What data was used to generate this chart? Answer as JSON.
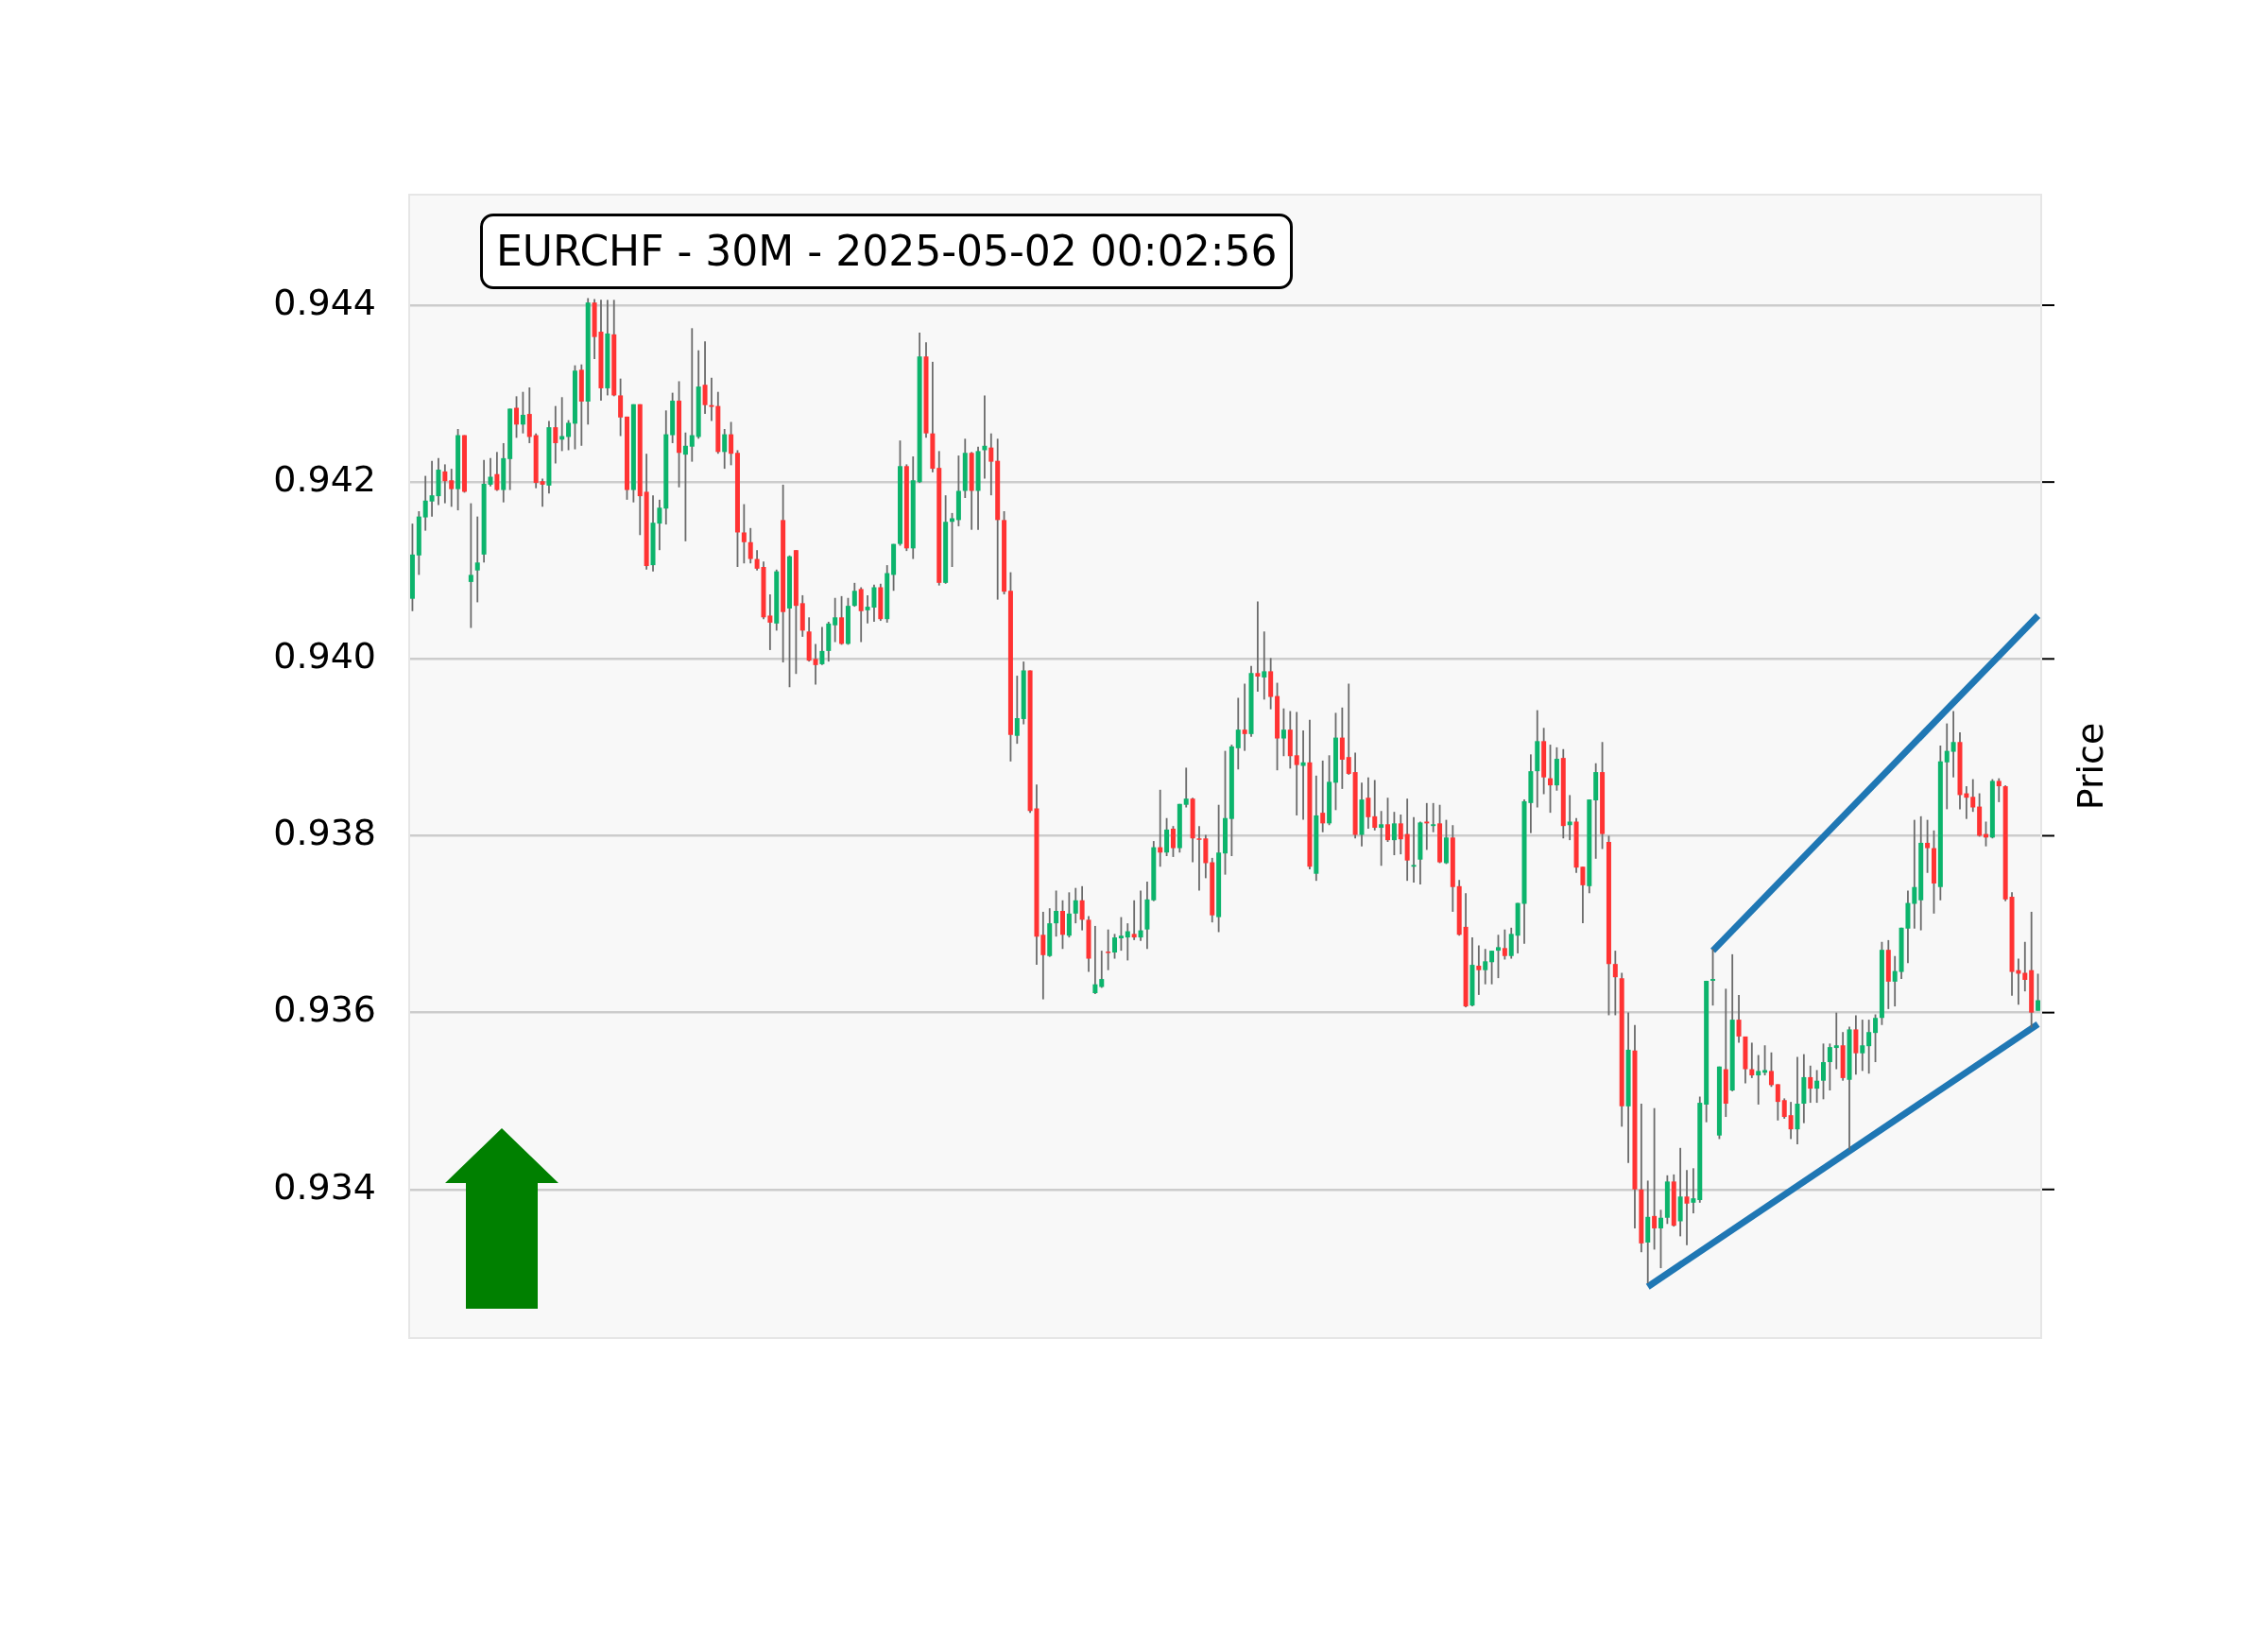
{
  "chart_data": {
    "type": "candlestick",
    "title": "EURCHF - 30M - 2025-05-02 00:02:56",
    "ylabel": "Price",
    "categories": [
      null,
      null,
      null,
      null,
      null,
      null,
      null,
      null,
      null,
      null,
      null,
      null,
      null,
      null,
      null,
      null,
      null,
      null,
      null,
      null,
      null,
      null,
      null,
      null,
      null,
      null,
      null,
      null,
      null,
      null,
      null,
      null,
      null,
      null,
      null,
      null,
      null,
      null,
      null,
      null,
      null,
      null,
      null,
      null,
      null,
      null,
      null,
      null,
      null,
      null,
      null,
      null,
      null,
      null,
      null,
      null,
      null,
      null,
      null,
      null,
      null,
      null,
      null,
      null,
      null,
      null,
      null,
      null,
      null,
      null,
      null,
      null,
      null,
      null,
      null,
      null,
      null,
      null,
      null,
      null,
      null,
      null,
      null,
      null,
      null,
      null,
      null,
      null,
      null,
      null,
      null,
      null,
      null,
      null,
      null,
      null,
      null,
      null,
      null,
      null,
      null,
      null,
      null,
      null,
      null,
      null,
      null,
      null,
      null,
      null,
      null,
      null,
      null,
      null,
      null,
      null,
      null,
      null,
      null,
      null,
      null,
      null,
      null,
      null,
      null,
      null,
      null,
      null,
      null,
      null,
      null,
      null,
      null,
      null,
      null,
      null,
      null,
      null,
      null,
      null,
      null,
      null,
      null,
      null,
      null,
      null,
      null,
      null,
      null,
      null,
      null,
      null,
      null,
      null,
      null,
      null,
      null,
      null,
      null,
      null,
      null,
      null,
      null,
      null,
      null,
      null,
      null,
      null,
      null,
      null,
      null,
      null,
      null,
      null,
      null,
      null,
      null,
      null,
      null,
      null,
      null,
      null,
      null,
      null,
      null,
      null,
      null,
      null,
      null,
      null,
      null,
      null,
      null,
      null,
      null,
      null,
      null,
      null,
      null,
      null,
      null,
      null,
      null,
      null,
      null,
      null,
      null,
      null,
      null,
      null,
      null,
      null,
      null,
      null,
      null,
      null,
      null,
      null,
      null,
      null,
      null,
      null,
      null,
      null,
      null,
      null,
      null,
      null,
      null,
      null,
      null,
      null,
      null,
      null,
      null,
      null,
      null,
      null,
      null,
      null,
      null,
      null,
      null,
      null,
      null,
      null,
      null,
      null,
      null,
      null,
      null
    ],
    "ohlc": [
      [
        0.94068,
        0.94153,
        0.94054,
        0.94118
      ],
      [
        0.94117,
        0.94167,
        0.94095,
        0.94161
      ],
      [
        0.9416,
        0.94207,
        0.94145,
        0.94179
      ],
      [
        0.94178,
        0.94224,
        0.94161,
        0.94185
      ],
      [
        0.94184,
        0.94227,
        0.94174,
        0.94214
      ],
      [
        0.94212,
        0.9422,
        0.94176,
        0.94201
      ],
      [
        0.94202,
        0.94215,
        0.94172,
        0.94192
      ],
      [
        0.94192,
        0.9426,
        0.94168,
        0.94253
      ],
      [
        0.94253,
        0.94253,
        0.94188,
        0.94189
      ],
      [
        0.94087,
        0.94176,
        0.94035,
        0.94095
      ],
      [
        0.941,
        0.94161,
        0.94064,
        0.94109
      ],
      [
        0.94118,
        0.94225,
        0.94109,
        0.94198
      ],
      [
        0.94197,
        0.94227,
        0.94195,
        0.94206
      ],
      [
        0.94209,
        0.94234,
        0.9419,
        0.94191
      ],
      [
        0.94191,
        0.94244,
        0.94177,
        0.94227
      ],
      [
        0.94226,
        0.94283,
        0.94191,
        0.94283
      ],
      [
        0.94284,
        0.94297,
        0.9425,
        0.94265
      ],
      [
        0.94265,
        0.94302,
        0.94255,
        0.94276
      ],
      [
        0.94277,
        0.94307,
        0.94244,
        0.94251
      ],
      [
        0.94253,
        0.94255,
        0.94193,
        0.94199
      ],
      [
        0.94201,
        0.94204,
        0.94172,
        0.94197
      ],
      [
        0.94196,
        0.94269,
        0.94187,
        0.94262
      ],
      [
        0.94262,
        0.94286,
        0.94221,
        0.94244
      ],
      [
        0.94248,
        0.94296,
        0.94235,
        0.94252
      ],
      [
        0.94251,
        0.9427,
        0.94236,
        0.94267
      ],
      [
        0.94266,
        0.94332,
        0.94237,
        0.94326
      ],
      [
        0.94327,
        0.94333,
        0.94241,
        0.94291
      ],
      [
        0.94291,
        0.94408,
        0.94265,
        0.94403
      ],
      [
        0.94403,
        0.94407,
        0.94339,
        0.94364
      ],
      [
        0.9437,
        0.94406,
        0.94292,
        0.94306
      ],
      [
        0.94306,
        0.94406,
        0.94298,
        0.94368
      ],
      [
        0.94367,
        0.94406,
        0.94297,
        0.94298
      ],
      [
        0.94298,
        0.94317,
        0.94252,
        0.94273
      ],
      [
        0.94274,
        0.94274,
        0.9418,
        0.94191
      ],
      [
        0.94191,
        0.94288,
        0.94177,
        0.94288
      ],
      [
        0.94288,
        0.94288,
        0.9414,
        0.94184
      ],
      [
        0.94189,
        0.94232,
        0.94101,
        0.94105
      ],
      [
        0.94106,
        0.94185,
        0.94099,
        0.94154
      ],
      [
        0.94153,
        0.9418,
        0.94123,
        0.94171
      ],
      [
        0.9417,
        0.94281,
        0.94152,
        0.94254
      ],
      [
        0.94253,
        0.94301,
        0.94244,
        0.94292
      ],
      [
        0.94292,
        0.94314,
        0.94194,
        0.94233
      ],
      [
        0.94231,
        0.94256,
        0.94133,
        0.94241
      ],
      [
        0.9424,
        0.94374,
        0.94223,
        0.94253
      ],
      [
        0.94251,
        0.94349,
        0.94249,
        0.94308
      ],
      [
        0.9431,
        0.94359,
        0.94277,
        0.94287
      ],
      [
        0.94287,
        0.94318,
        0.94269,
        0.94285
      ],
      [
        0.94286,
        0.94302,
        0.94232,
        0.94234
      ],
      [
        0.94234,
        0.9426,
        0.94215,
        0.94254
      ],
      [
        0.94254,
        0.94268,
        0.94219,
        0.94232
      ],
      [
        0.94233,
        0.94236,
        0.94104,
        0.94143
      ],
      [
        0.94143,
        0.94175,
        0.94108,
        0.94132
      ],
      [
        0.94132,
        0.94148,
        0.94108,
        0.94113
      ],
      [
        0.94113,
        0.94123,
        0.941,
        0.94102
      ],
      [
        0.94104,
        0.9411,
        0.94045,
        0.94047
      ],
      [
        0.94049,
        0.94073,
        0.9401,
        0.94041
      ],
      [
        0.9404,
        0.94101,
        0.94032,
        0.94099
      ],
      [
        0.94157,
        0.94197,
        0.93996,
        0.94053
      ],
      [
        0.94057,
        0.94117,
        0.93968,
        0.94116
      ],
      [
        0.94123,
        0.94123,
        0.93983,
        0.9406
      ],
      [
        0.94063,
        0.94072,
        0.94025,
        0.94032
      ],
      [
        0.94031,
        0.94047,
        0.93997,
        0.93998
      ],
      [
        0.94,
        0.94017,
        0.93971,
        0.93993
      ],
      [
        0.93994,
        0.94036,
        0.93993,
        0.94009
      ],
      [
        0.94009,
        0.94042,
        0.93997,
        0.9404
      ],
      [
        0.94038,
        0.94069,
        0.94019,
        0.94047
      ],
      [
        0.94047,
        0.94071,
        0.94016,
        0.94017
      ],
      [
        0.94017,
        0.94069,
        0.94016,
        0.9406
      ],
      [
        0.9406,
        0.94086,
        0.94059,
        0.94077
      ],
      [
        0.94079,
        0.94081,
        0.94019,
        0.94054
      ],
      [
        0.94055,
        0.94072,
        0.9404,
        0.94059
      ],
      [
        0.94058,
        0.94084,
        0.94042,
        0.94081
      ],
      [
        0.94081,
        0.94085,
        0.94043,
        0.94045
      ],
      [
        0.94045,
        0.94106,
        0.94041,
        0.94097
      ],
      [
        0.94095,
        0.9413,
        0.94077,
        0.9413
      ],
      [
        0.9413,
        0.94247,
        0.94128,
        0.94218
      ],
      [
        0.94218,
        0.9422,
        0.94122,
        0.94125
      ],
      [
        0.94125,
        0.94229,
        0.94113,
        0.94202
      ],
      [
        0.942,
        0.94369,
        0.94199,
        0.94342
      ],
      [
        0.94342,
        0.94358,
        0.9425,
        0.94255
      ],
      [
        0.94255,
        0.94336,
        0.94211,
        0.94215
      ],
      [
        0.94216,
        0.94235,
        0.94083,
        0.94086
      ],
      [
        0.94086,
        0.94185,
        0.94085,
        0.94155
      ],
      [
        0.94155,
        0.94165,
        0.94104,
        0.94159
      ],
      [
        0.94157,
        0.9423,
        0.9415,
        0.9419
      ],
      [
        0.9419,
        0.94249,
        0.94182,
        0.94233
      ],
      [
        0.94233,
        0.94234,
        0.94146,
        0.9419
      ],
      [
        0.9419,
        0.9424,
        0.94146,
        0.94235
      ],
      [
        0.94236,
        0.94298,
        0.94204,
        0.94241
      ],
      [
        0.94239,
        0.94255,
        0.94185,
        0.94223
      ],
      [
        0.94224,
        0.94249,
        0.94067,
        0.94157
      ],
      [
        0.94157,
        0.94167,
        0.94073,
        0.94076
      ],
      [
        0.94077,
        0.94098,
        0.93884,
        0.93914
      ],
      [
        0.93913,
        0.93981,
        0.93904,
        0.93933
      ],
      [
        0.93932,
        0.93997,
        0.93926,
        0.93987
      ],
      [
        0.93987,
        0.93987,
        0.93826,
        0.93828
      ],
      [
        0.93831,
        0.93858,
        0.93654,
        0.93686
      ],
      [
        0.93688,
        0.93714,
        0.93615,
        0.93665
      ],
      [
        0.93664,
        0.93718,
        0.93663,
        0.93701
      ],
      [
        0.93701,
        0.93738,
        0.93686,
        0.93715
      ],
      [
        0.93715,
        0.93727,
        0.93672,
        0.93688
      ],
      [
        0.93687,
        0.93736,
        0.93685,
        0.93712
      ],
      [
        0.93712,
        0.93741,
        0.93701,
        0.93727
      ],
      [
        0.93727,
        0.93743,
        0.93693,
        0.93705
      ],
      [
        0.93705,
        0.93709,
        0.93646,
        0.93661
      ],
      [
        0.93622,
        0.93698,
        0.93621,
        0.93632
      ],
      [
        0.93629,
        0.9367,
        0.93628,
        0.93638
      ],
      [
        0.93669,
        0.93694,
        0.93648,
        0.93668
      ],
      [
        0.93668,
        0.93689,
        0.93661,
        0.93685
      ],
      [
        0.93684,
        0.93708,
        0.9367,
        0.93687
      ],
      [
        0.93685,
        0.93701,
        0.93659,
        0.93692
      ],
      [
        0.93689,
        0.93727,
        0.93682,
        0.93685
      ],
      [
        0.93685,
        0.93738,
        0.93681,
        0.93693
      ],
      [
        0.93694,
        0.93748,
        0.93672,
        0.93728
      ],
      [
        0.93727,
        0.93794,
        0.93726,
        0.93787
      ],
      [
        0.93787,
        0.93852,
        0.93765,
        0.93781
      ],
      [
        0.93781,
        0.9382,
        0.93777,
        0.93807
      ],
      [
        0.93808,
        0.93811,
        0.93776,
        0.93786
      ],
      [
        0.93786,
        0.93836,
        0.93781,
        0.93836
      ],
      [
        0.93835,
        0.93877,
        0.93832,
        0.93842
      ],
      [
        0.93842,
        0.93843,
        0.9377,
        0.93797
      ],
      [
        0.93797,
        0.93811,
        0.93738,
        0.93796
      ],
      [
        0.93797,
        0.93801,
        0.93752,
        0.93769
      ],
      [
        0.9377,
        0.93775,
        0.93702,
        0.9371
      ],
      [
        0.93708,
        0.93835,
        0.93691,
        0.93781
      ],
      [
        0.9378,
        0.93896,
        0.93756,
        0.9382
      ],
      [
        0.93819,
        0.93903,
        0.93777,
        0.93901
      ],
      [
        0.93899,
        0.93956,
        0.93875,
        0.9392
      ],
      [
        0.9392,
        0.93972,
        0.93896,
        0.93915
      ],
      [
        0.93915,
        0.93992,
        0.93912,
        0.93984
      ],
      [
        0.93984,
        0.94065,
        0.93963,
        0.9398
      ],
      [
        0.93979,
        0.94031,
        0.93954,
        0.93986
      ],
      [
        0.93986,
        0.94001,
        0.93943,
        0.93957
      ],
      [
        0.93958,
        0.93973,
        0.93874,
        0.9391
      ],
      [
        0.9391,
        0.93944,
        0.9389,
        0.9392
      ],
      [
        0.9392,
        0.93941,
        0.93876,
        0.9389
      ],
      [
        0.93891,
        0.9394,
        0.93823,
        0.9388
      ],
      [
        0.93879,
        0.93919,
        0.93818,
        0.93883
      ],
      [
        0.93883,
        0.93931,
        0.93762,
        0.93765
      ],
      [
        0.93757,
        0.93868,
        0.93749,
        0.93823
      ],
      [
        0.93826,
        0.93885,
        0.93804,
        0.93814
      ],
      [
        0.93814,
        0.93891,
        0.93812,
        0.93861
      ],
      [
        0.9386,
        0.93939,
        0.93829,
        0.93911
      ],
      [
        0.93911,
        0.93945,
        0.93853,
        0.93886
      ],
      [
        0.93889,
        0.93972,
        0.93869,
        0.9387
      ],
      [
        0.93872,
        0.93894,
        0.93797,
        0.93801
      ],
      [
        0.93801,
        0.9386,
        0.93788,
        0.93841
      ],
      [
        0.93843,
        0.93866,
        0.93808,
        0.93821
      ],
      [
        0.93822,
        0.93863,
        0.93806,
        0.93809
      ],
      [
        0.93809,
        0.93828,
        0.93766,
        0.93813
      ],
      [
        0.93813,
        0.93843,
        0.93793,
        0.93795
      ],
      [
        0.93795,
        0.93827,
        0.93778,
        0.93814
      ],
      [
        0.93814,
        0.93824,
        0.93779,
        0.93796
      ],
      [
        0.93802,
        0.93842,
        0.93749,
        0.93772
      ],
      [
        0.93765,
        0.93821,
        0.93747,
        0.93767
      ],
      [
        0.93773,
        0.93816,
        0.93745,
        0.93815
      ],
      [
        0.93816,
        0.93837,
        0.93784,
        0.93814
      ],
      [
        0.93811,
        0.93837,
        0.93804,
        0.93813
      ],
      [
        0.93814,
        0.93835,
        0.93769,
        0.9377
      ],
      [
        0.93769,
        0.93818,
        0.93768,
        0.93798
      ],
      [
        0.93798,
        0.93812,
        0.93714,
        0.93742
      ],
      [
        0.93743,
        0.9375,
        0.93687,
        0.93688
      ],
      [
        0.93697,
        0.93735,
        0.93606,
        0.93607
      ],
      [
        0.93608,
        0.93685,
        0.93607,
        0.93654
      ],
      [
        0.93653,
        0.93676,
        0.9362,
        0.93648
      ],
      [
        0.93648,
        0.93672,
        0.93632,
        0.93658
      ],
      [
        0.93657,
        0.9367,
        0.93632,
        0.9367
      ],
      [
        0.9367,
        0.93688,
        0.93639,
        0.93674
      ],
      [
        0.93673,
        0.93694,
        0.9366,
        0.93664
      ],
      [
        0.93664,
        0.93696,
        0.93661,
        0.93689
      ],
      [
        0.93687,
        0.93724,
        0.93667,
        0.93724
      ],
      [
        0.93723,
        0.93841,
        0.93678,
        0.93839
      ],
      [
        0.93837,
        0.93892,
        0.93803,
        0.93873
      ],
      [
        0.93873,
        0.93942,
        0.93832,
        0.93907
      ],
      [
        0.93907,
        0.93922,
        0.93847,
        0.93866
      ],
      [
        0.93865,
        0.93903,
        0.93826,
        0.93857
      ],
      [
        0.93857,
        0.939,
        0.93851,
        0.93887
      ],
      [
        0.93888,
        0.93898,
        0.93797,
        0.93811
      ],
      [
        0.93812,
        0.93846,
        0.93795,
        0.93816
      ],
      [
        0.93816,
        0.9382,
        0.93758,
        0.93764
      ],
      [
        0.93765,
        0.93765,
        0.93701,
        0.93744
      ],
      [
        0.93743,
        0.93841,
        0.93735,
        0.93841
      ],
      [
        0.9384,
        0.93882,
        0.93774,
        0.93872
      ],
      [
        0.93872,
        0.93906,
        0.93785,
        0.93802
      ],
      [
        0.93793,
        0.938,
        0.93597,
        0.93655
      ],
      [
        0.93655,
        0.9367,
        0.93597,
        0.9364
      ],
      [
        0.93639,
        0.93645,
        0.93471,
        0.93494
      ],
      [
        0.93494,
        0.936,
        0.9343,
        0.93558
      ],
      [
        0.93557,
        0.93586,
        0.93356,
        0.934
      ],
      [
        0.934,
        0.93497,
        0.93329,
        0.93339
      ],
      [
        0.9334,
        0.9341,
        0.93294,
        0.93369
      ],
      [
        0.9337,
        0.93492,
        0.93332,
        0.93356
      ],
      [
        0.93356,
        0.93377,
        0.93311,
        0.93368
      ],
      [
        0.93368,
        0.93416,
        0.93361,
        0.93409
      ],
      [
        0.93409,
        0.93417,
        0.93358,
        0.93359
      ],
      [
        0.93364,
        0.93447,
        0.93347,
        0.93392
      ],
      [
        0.93392,
        0.93422,
        0.93337,
        0.93384
      ],
      [
        0.93385,
        0.93424,
        0.93373,
        0.9339
      ],
      [
        0.93388,
        0.93505,
        0.93385,
        0.93498
      ],
      [
        0.93496,
        0.93636,
        0.93476,
        0.93636
      ],
      [
        0.93636,
        0.93672,
        0.93608,
        0.93638
      ],
      [
        0.93461,
        0.93539,
        0.93457,
        0.93539
      ],
      [
        0.93536,
        0.93627,
        0.93482,
        0.93497
      ],
      [
        0.93512,
        0.93666,
        0.93511,
        0.93592
      ],
      [
        0.93592,
        0.9362,
        0.93566,
        0.93573
      ],
      [
        0.93573,
        0.93573,
        0.9352,
        0.93536
      ],
      [
        0.93536,
        0.93566,
        0.93526,
        0.93529
      ],
      [
        0.93529,
        0.93552,
        0.93496,
        0.93534
      ],
      [
        0.93532,
        0.93563,
        0.93529,
        0.93535
      ],
      [
        0.93534,
        0.93555,
        0.93516,
        0.93518
      ],
      [
        0.93519,
        0.93519,
        0.93478,
        0.93499
      ],
      [
        0.93501,
        0.93503,
        0.9348,
        0.93482
      ],
      [
        0.93484,
        0.93499,
        0.93457,
        0.93468
      ],
      [
        0.93468,
        0.9355,
        0.93451,
        0.93497
      ],
      [
        0.93497,
        0.93553,
        0.93475,
        0.93527
      ],
      [
        0.93527,
        0.9354,
        0.93498,
        0.93514
      ],
      [
        0.93514,
        0.93535,
        0.93498,
        0.93523
      ],
      [
        0.93523,
        0.93565,
        0.93502,
        0.93544
      ],
      [
        0.93544,
        0.93565,
        0.93512,
        0.93561
      ],
      [
        0.9356,
        0.936,
        0.93536,
        0.93563
      ],
      [
        0.93563,
        0.93578,
        0.93523,
        0.93526
      ],
      [
        0.93524,
        0.93584,
        0.93445,
        0.93581
      ],
      [
        0.93581,
        0.93597,
        0.9353,
        0.93554
      ],
      [
        0.93554,
        0.93592,
        0.93534,
        0.93563
      ],
      [
        0.93562,
        0.93592,
        0.93531,
        0.93578
      ],
      [
        0.93577,
        0.93598,
        0.93544,
        0.93594
      ],
      [
        0.93594,
        0.9368,
        0.93586,
        0.93671
      ],
      [
        0.93671,
        0.93682,
        0.93604,
        0.93635
      ],
      [
        0.93635,
        0.93664,
        0.93607,
        0.93647
      ],
      [
        0.93646,
        0.93696,
        0.93638,
        0.93696
      ],
      [
        0.93695,
        0.93738,
        0.93656,
        0.93724
      ],
      [
        0.93723,
        0.93818,
        0.93695,
        0.93742
      ],
      [
        0.93727,
        0.93822,
        0.93693,
        0.93792
      ],
      [
        0.93792,
        0.93818,
        0.93758,
        0.93786
      ],
      [
        0.93786,
        0.93806,
        0.93712,
        0.93746
      ],
      [
        0.93742,
        0.93902,
        0.93727,
        0.93884
      ],
      [
        0.93883,
        0.93927,
        0.9383,
        0.93896
      ],
      [
        0.93895,
        0.93941,
        0.93866,
        0.93906
      ],
      [
        0.93906,
        0.93917,
        0.9383,
        0.93846
      ],
      [
        0.93848,
        0.93856,
        0.93819,
        0.93843
      ],
      [
        0.93844,
        0.93864,
        0.93827,
        0.93832
      ],
      [
        0.93833,
        0.93848,
        0.93799,
        0.938
      ],
      [
        0.93802,
        0.93816,
        0.93788,
        0.93798
      ],
      [
        0.93798,
        0.93864,
        0.93797,
        0.93862
      ],
      [
        0.93862,
        0.93865,
        0.93838,
        0.93856
      ],
      [
        0.93856,
        0.93857,
        0.93726,
        0.93728
      ],
      [
        0.93731,
        0.93736,
        0.93619,
        0.93646
      ],
      [
        0.93648,
        0.93661,
        0.93609,
        0.93644
      ],
      [
        0.93645,
        0.9368,
        0.93624,
        0.93637
      ],
      [
        0.93648,
        0.93714,
        0.93583,
        0.936
      ],
      [
        0.93602,
        0.93644,
        0.93602,
        0.93614
      ]
    ],
    "colors": [
      "#0cb46c",
      "#0cb46c",
      "#0cb46c",
      "#0cb46c",
      "#0cb46c",
      "#ff3333",
      "#ff3333",
      "#0cb46c",
      "#ff3333",
      "#0cb46c",
      "#0cb46c",
      "#0cb46c",
      "#0cb46c",
      "#ff3333",
      "#0cb46c",
      "#0cb46c",
      "#ff3333",
      "#0cb46c",
      "#ff3333",
      "#ff3333",
      "#ff3333",
      "#0cb46c",
      "#ff3333",
      "#0cb46c",
      "#0cb46c",
      "#0cb46c",
      "#ff3333",
      "#0cb46c",
      "#ff3333",
      "#ff3333",
      "#0cb46c",
      "#ff3333",
      "#ff3333",
      "#ff3333",
      "#0cb46c",
      "#ff3333",
      "#ff3333",
      "#0cb46c",
      "#0cb46c",
      "#0cb46c",
      "#0cb46c",
      "#ff3333",
      "#0cb46c",
      "#0cb46c",
      "#0cb46c",
      "#ff3333",
      "#ff3333",
      "#ff3333",
      "#0cb46c",
      "#ff3333",
      "#ff3333",
      "#ff3333",
      "#ff3333",
      "#ff3333",
      "#ff3333",
      "#ff3333",
      "#0cb46c",
      "#ff3333",
      "#0cb46c",
      "#ff3333",
      "#ff3333",
      "#ff3333",
      "#ff3333",
      "#0cb46c",
      "#0cb46c",
      "#0cb46c",
      "#ff3333",
      "#0cb46c",
      "#0cb46c",
      "#ff3333",
      "#0cb46c",
      "#0cb46c",
      "#ff3333",
      "#0cb46c",
      "#0cb46c",
      "#0cb46c",
      "#ff3333",
      "#0cb46c",
      "#0cb46c",
      "#ff3333",
      "#ff3333",
      "#ff3333",
      "#0cb46c",
      "#0cb46c",
      "#0cb46c",
      "#0cb46c",
      "#ff3333",
      "#0cb46c",
      "#0cb46c",
      "#ff3333",
      "#ff3333",
      "#ff3333",
      "#ff3333",
      "#0cb46c",
      "#0cb46c",
      "#ff3333",
      "#ff3333",
      "#ff3333",
      "#0cb46c",
      "#0cb46c",
      "#ff3333",
      "#0cb46c",
      "#0cb46c",
      "#ff3333",
      "#ff3333",
      "#0cb46c",
      "#0cb46c",
      "#ff3333",
      "#0cb46c",
      "#0cb46c",
      "#0cb46c",
      "#ff3333",
      "#0cb46c",
      "#0cb46c",
      "#0cb46c",
      "#ff3333",
      "#0cb46c",
      "#ff3333",
      "#0cb46c",
      "#0cb46c",
      "#ff3333",
      "#ff3333",
      "#ff3333",
      "#ff3333",
      "#0cb46c",
      "#0cb46c",
      "#0cb46c",
      "#0cb46c",
      "#ff3333",
      "#0cb46c",
      "#ff3333",
      "#0cb46c",
      "#ff3333",
      "#ff3333",
      "#0cb46c",
      "#ff3333",
      "#ff3333",
      "#0cb46c",
      "#ff3333",
      "#0cb46c",
      "#ff3333",
      "#0cb46c",
      "#0cb46c",
      "#ff3333",
      "#ff3333",
      "#ff3333",
      "#0cb46c",
      "#ff3333",
      "#ff3333",
      "#0cb46c",
      "#ff3333",
      "#0cb46c",
      "#ff3333",
      "#ff3333",
      "#0cb46c",
      "#0cb46c",
      "#ff3333",
      "#0cb46c",
      "#ff3333",
      "#0cb46c",
      "#ff3333",
      "#ff3333",
      "#ff3333",
      "#0cb46c",
      "#ff3333",
      "#0cb46c",
      "#0cb46c",
      "#0cb46c",
      "#ff3333",
      "#0cb46c",
      "#0cb46c",
      "#0cb46c",
      "#0cb46c",
      "#0cb46c",
      "#ff3333",
      "#ff3333",
      "#0cb46c",
      "#ff3333",
      "#0cb46c",
      "#ff3333",
      "#ff3333",
      "#0cb46c",
      "#0cb46c",
      "#ff3333",
      "#ff3333",
      "#ff3333",
      "#ff3333",
      "#0cb46c",
      "#ff3333",
      "#ff3333",
      "#0cb46c",
      "#ff3333",
      "#0cb46c",
      "#0cb46c",
      "#ff3333",
      "#0cb46c",
      "#ff3333",
      "#0cb46c",
      "#0cb46c",
      "#0cb46c",
      "#0cb46c",
      "#0cb46c",
      "#ff3333",
      "#0cb46c",
      "#ff3333",
      "#ff3333",
      "#ff3333",
      "#0cb46c",
      "#0cb46c",
      "#ff3333",
      "#ff3333",
      "#ff3333",
      "#ff3333",
      "#0cb46c",
      "#0cb46c",
      "#ff3333",
      "#0cb46c",
      "#0cb46c",
      "#0cb46c",
      "#0cb46c",
      "#ff3333",
      "#0cb46c",
      "#ff3333",
      "#0cb46c",
      "#0cb46c",
      "#0cb46c",
      "#0cb46c",
      "#ff3333",
      "#0cb46c",
      "#0cb46c",
      "#0cb46c",
      "#0cb46c",
      "#0cb46c",
      "#ff3333",
      "#ff3333",
      "#0cb46c",
      "#0cb46c",
      "#0cb46c",
      "#ff3333",
      "#ff3333",
      "#ff3333",
      "#ff3333",
      "#ff3333",
      "#0cb46c",
      "#ff3333",
      "#ff3333",
      "#ff3333",
      "#ff3333",
      "#ff3333",
      "#ff3333",
      "#0cb46c"
    ],
    "series": [
      {
        "type": "line",
        "color": "#1f77b4",
        "values": [
          null,
          null,
          null,
          null,
          null,
          null,
          null,
          null,
          null,
          null,
          null,
          null,
          null,
          null,
          null,
          null,
          null,
          null,
          null,
          null,
          null,
          null,
          null,
          null,
          null,
          null,
          null,
          null,
          null,
          null,
          null,
          null,
          null,
          null,
          null,
          null,
          null,
          null,
          null,
          null,
          null,
          null,
          null,
          null,
          null,
          null,
          null,
          null,
          null,
          null,
          null,
          null,
          null,
          null,
          null,
          null,
          null,
          null,
          null,
          null,
          null,
          null,
          null,
          null,
          null,
          null,
          null,
          null,
          null,
          null,
          null,
          null,
          null,
          null,
          null,
          null,
          null,
          null,
          null,
          null,
          null,
          null,
          null,
          null,
          null,
          null,
          null,
          null,
          null,
          null,
          null,
          null,
          null,
          null,
          null,
          null,
          null,
          null,
          null,
          null,
          null,
          null,
          null,
          null,
          null,
          null,
          null,
          null,
          null,
          null,
          null,
          null,
          null,
          null,
          null,
          null,
          null,
          null,
          null,
          null,
          null,
          null,
          null,
          null,
          null,
          null,
          null,
          null,
          null,
          null,
          null,
          null,
          null,
          null,
          null,
          null,
          null,
          null,
          null,
          null,
          null,
          null,
          null,
          null,
          null,
          null,
          null,
          null,
          null,
          null,
          null,
          null,
          null,
          null,
          null,
          null,
          null,
          null,
          null,
          null,
          null,
          null,
          null,
          null,
          null,
          null,
          null,
          null,
          null,
          null,
          null,
          null,
          null,
          null,
          null,
          null,
          null,
          null,
          null,
          null,
          null,
          null,
          null,
          null,
          null,
          null,
          null,
          null,
          null,
          null,
          null,
          null,
          null,
          null,
          null,
          null,
          null,
          null,
          null,
          null,
          0.9367,
          null,
          null,
          null,
          null,
          null,
          null,
          null,
          null,
          null,
          null,
          null,
          null,
          null,
          null,
          null,
          null,
          null,
          null,
          null,
          null,
          null,
          null,
          null,
          null,
          null,
          null,
          null,
          null,
          null,
          null,
          null,
          null,
          null,
          null,
          null,
          null,
          null,
          null,
          null,
          null,
          null,
          null,
          null,
          null,
          null,
          null,
          null,
          null,
          null,
          0.94049
        ]
      },
      {
        "type": "line",
        "color": "#1f77b4",
        "values": [
          null,
          null,
          null,
          null,
          null,
          null,
          null,
          null,
          null,
          null,
          null,
          null,
          null,
          null,
          null,
          null,
          null,
          null,
          null,
          null,
          null,
          null,
          null,
          null,
          null,
          null,
          null,
          null,
          null,
          null,
          null,
          null,
          null,
          null,
          null,
          null,
          null,
          null,
          null,
          null,
          null,
          null,
          null,
          null,
          null,
          null,
          null,
          null,
          null,
          null,
          null,
          null,
          null,
          null,
          null,
          null,
          null,
          null,
          null,
          null,
          null,
          null,
          null,
          null,
          null,
          null,
          null,
          null,
          null,
          null,
          null,
          null,
          null,
          null,
          null,
          null,
          null,
          null,
          null,
          null,
          null,
          null,
          null,
          null,
          null,
          null,
          null,
          null,
          null,
          null,
          null,
          null,
          null,
          null,
          null,
          null,
          null,
          null,
          null,
          null,
          null,
          null,
          null,
          null,
          null,
          null,
          null,
          null,
          null,
          null,
          null,
          null,
          null,
          null,
          null,
          null,
          null,
          null,
          null,
          null,
          null,
          null,
          null,
          null,
          null,
          null,
          null,
          null,
          null,
          null,
          null,
          null,
          null,
          null,
          null,
          null,
          null,
          null,
          null,
          null,
          null,
          null,
          null,
          null,
          null,
          null,
          null,
          null,
          null,
          null,
          null,
          null,
          null,
          null,
          null,
          null,
          null,
          null,
          null,
          null,
          null,
          null,
          null,
          null,
          null,
          null,
          null,
          null,
          null,
          null,
          null,
          null,
          null,
          null,
          null,
          null,
          null,
          null,
          null,
          null,
          null,
          null,
          null,
          null,
          null,
          null,
          null,
          null,
          null,
          null,
          0.9329,
          null,
          null,
          null,
          null,
          null,
          null,
          null,
          null,
          null,
          null,
          null,
          null,
          null,
          null,
          null,
          null,
          null,
          null,
          null,
          null,
          null,
          null,
          null,
          null,
          null,
          null,
          null,
          null,
          null,
          null,
          null,
          null,
          null,
          null,
          null,
          null,
          null,
          null,
          null,
          null,
          null,
          null,
          null,
          null,
          null,
          null,
          null,
          null,
          null,
          null,
          null,
          null,
          null,
          null,
          null,
          null,
          null,
          null,
          null,
          0.93587
        ]
      }
    ],
    "ylim": [
      0.93232,
      0.94525
    ],
    "yticks": [
      0.934,
      0.936,
      0.938,
      {
        "value": 0.94,
        "label": "0.940"
      },
      0.942,
      0.944
    ],
    "grid": "y",
    "tick_labels": "y"
  }
}
